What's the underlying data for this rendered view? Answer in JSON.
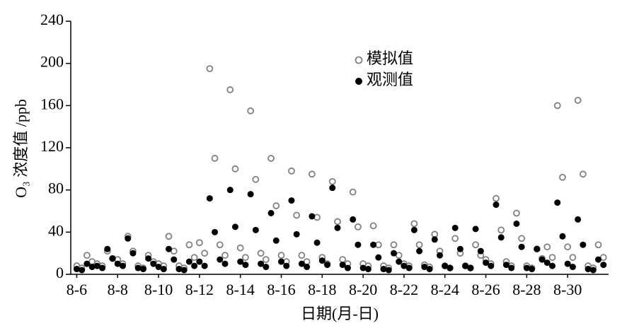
{
  "chart_data": {
    "type": "scatter",
    "ylabel": "O₃ 浓度值 /ppb",
    "xlabel": "日期(月-日)",
    "xlim": [
      -7,
      624
    ],
    "ylim": [
      0,
      240
    ],
    "yticks": [
      0,
      40,
      80,
      120,
      160,
      200,
      240
    ],
    "xticks": [
      {
        "value": 0,
        "label": "8-6"
      },
      {
        "value": 48,
        "label": "8-8"
      },
      {
        "value": 96,
        "label": "8-10"
      },
      {
        "value": 144,
        "label": "8-12"
      },
      {
        "value": 192,
        "label": "8-14"
      },
      {
        "value": 240,
        "label": "8-16"
      },
      {
        "value": 288,
        "label": "8-18"
      },
      {
        "value": 336,
        "label": "8-20"
      },
      {
        "value": 384,
        "label": "8-22"
      },
      {
        "value": 432,
        "label": "8-24"
      },
      {
        "value": 480,
        "label": "8-26"
      },
      {
        "value": 528,
        "label": "8-28"
      },
      {
        "value": 576,
        "label": "8-30"
      }
    ],
    "x": [
      0,
      6,
      12,
      18,
      24,
      30,
      36,
      42,
      48,
      54,
      60,
      66,
      72,
      78,
      84,
      90,
      96,
      102,
      108,
      114,
      120,
      126,
      132,
      138,
      144,
      150,
      156,
      162,
      168,
      174,
      180,
      186,
      192,
      198,
      204,
      210,
      216,
      222,
      228,
      234,
      240,
      246,
      252,
      258,
      264,
      270,
      276,
      282,
      288,
      294,
      300,
      306,
      312,
      318,
      324,
      330,
      336,
      342,
      348,
      354,
      360,
      366,
      372,
      378,
      384,
      390,
      396,
      402,
      408,
      414,
      420,
      426,
      432,
      438,
      444,
      450,
      456,
      462,
      468,
      474,
      480,
      486,
      492,
      498,
      504,
      510,
      516,
      522,
      528,
      534,
      540,
      546,
      552,
      558,
      564,
      570,
      576,
      582,
      588,
      594,
      600,
      606,
      612,
      618
    ],
    "series": [
      {
        "name": "模拟值",
        "color": "#808080",
        "filled": false,
        "values": [
          8,
          6,
          18,
          12,
          10,
          8,
          22,
          15,
          14,
          10,
          36,
          22,
          8,
          6,
          18,
          12,
          10,
          8,
          36,
          22,
          8,
          6,
          28,
          16,
          30,
          20,
          195,
          110,
          28,
          18,
          175,
          100,
          25,
          16,
          155,
          90,
          20,
          14,
          110,
          65,
          18,
          12,
          98,
          56,
          18,
          12,
          95,
          54,
          16,
          10,
          88,
          50,
          14,
          10,
          78,
          45,
          10,
          8,
          46,
          28,
          8,
          6,
          28,
          18,
          10,
          8,
          48,
          28,
          9,
          7,
          38,
          22,
          8,
          6,
          34,
          20,
          8,
          6,
          28,
          18,
          14,
          10,
          72,
          42,
          12,
          8,
          58,
          34,
          8,
          6,
          24,
          15,
          26,
          16,
          160,
          92,
          26,
          16,
          165,
          95,
          8,
          6,
          28,
          16
        ]
      },
      {
        "name": "观测值",
        "color": "#000000",
        "filled": true,
        "values": [
          5,
          4,
          10,
          7,
          8,
          6,
          24,
          15,
          10,
          8,
          34,
          20,
          6,
          5,
          15,
          10,
          7,
          5,
          24,
          14,
          5,
          4,
          12,
          8,
          12,
          8,
          72,
          40,
          14,
          10,
          80,
          45,
          12,
          9,
          76,
          42,
          10,
          7,
          58,
          32,
          12,
          8,
          70,
          38,
          10,
          7,
          55,
          30,
          13,
          9,
          82,
          44,
          9,
          6,
          52,
          28,
          6,
          5,
          28,
          16,
          5,
          4,
          20,
          12,
          8,
          6,
          42,
          22,
          7,
          5,
          33,
          18,
          8,
          6,
          44,
          24,
          8,
          6,
          43,
          22,
          11,
          8,
          66,
          35,
          9,
          6,
          48,
          26,
          6,
          5,
          24,
          14,
          11,
          8,
          68,
          36,
          10,
          7,
          52,
          28,
          5,
          4,
          14,
          9
        ]
      }
    ]
  }
}
